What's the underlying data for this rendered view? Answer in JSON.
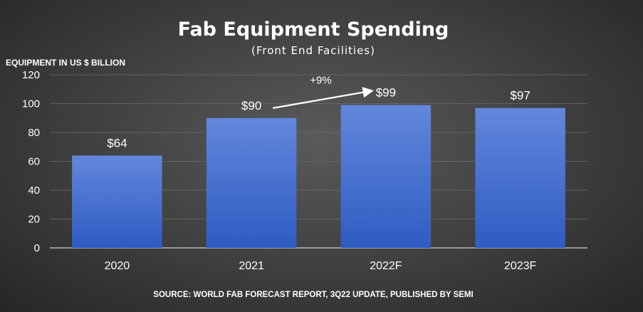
{
  "chart_data": {
    "type": "bar",
    "title": "Fab Equipment Spending",
    "subtitle": "(Front End Facilities)",
    "ylabel": "EQUIPMENT IN US $ BILLION",
    "xlabel": "",
    "categories": [
      "2020",
      "2021",
      "2022F",
      "2023F"
    ],
    "values": [
      64,
      90,
      99,
      97
    ],
    "data_labels": [
      "$64",
      "$90",
      "$99",
      "$97"
    ],
    "ylim": [
      0,
      120
    ],
    "yticks": [
      0,
      20,
      40,
      60,
      80,
      100,
      120
    ],
    "grid": true,
    "legend": "none",
    "bar_color": "#4a72cf",
    "annotation": {
      "text": "+9%",
      "from_category": "2021",
      "to_category": "2022F"
    },
    "source": "SOURCE: WORLD FAB FORECAST REPORT, 3Q22 UPDATE, PUBLISHED BY SEMI"
  }
}
